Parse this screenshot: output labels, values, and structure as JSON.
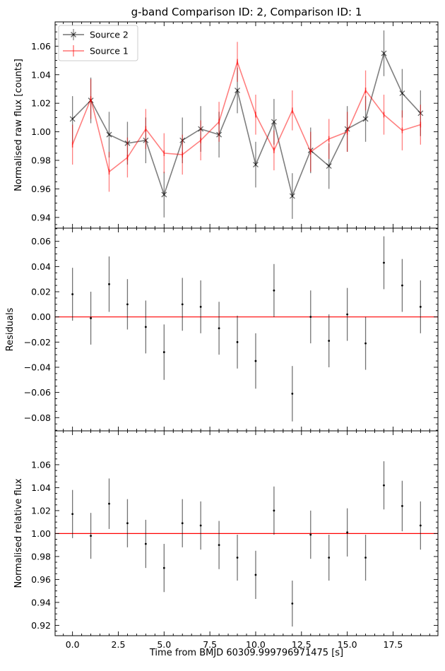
{
  "title": "g-band Comparison ID: 2, Comparison ID: 1",
  "xlabel": "Time from BMJD 60309.999796971475 [s]",
  "chart_data": [
    {
      "type": "line",
      "ylabel": "Normalised raw flux [counts]",
      "xlim": [
        -0.95,
        19.95
      ],
      "ylim": [
        0.9325,
        1.077
      ],
      "yticks": [
        "0.94",
        "0.96",
        "0.98",
        "1.00",
        "1.02",
        "1.04",
        "1.06"
      ],
      "legend": {
        "placement": "top-left",
        "entries": [
          "Source 2",
          "Source 1"
        ]
      },
      "x": [
        0,
        1,
        2,
        3,
        4,
        5,
        6,
        7,
        8,
        9,
        10,
        11,
        12,
        13,
        14,
        15,
        16,
        17,
        18,
        19
      ],
      "series": [
        {
          "name": "Source 2",
          "color": "#000000",
          "marker": "x",
          "values": [
            1.009,
            1.022,
            0.998,
            0.992,
            0.994,
            0.956,
            0.994,
            1.002,
            0.998,
            1.029,
            0.977,
            1.007,
            0.955,
            0.987,
            0.976,
            1.002,
            1.009,
            1.055,
            1.027,
            1.013
          ],
          "errors": [
            0.016,
            0.016,
            0.016,
            0.015,
            0.016,
            0.016,
            0.016,
            0.016,
            0.016,
            0.016,
            0.016,
            0.016,
            0.016,
            0.016,
            0.016,
            0.016,
            0.016,
            0.016,
            0.017,
            0.016
          ]
        },
        {
          "name": "Source 1",
          "color": "#ff0000",
          "marker": "|",
          "values": [
            0.991,
            1.023,
            0.972,
            0.982,
            1.002,
            0.985,
            0.984,
            0.994,
            1.007,
            1.049,
            1.012,
            0.987,
            1.015,
            0.986,
            0.995,
            1.0,
            1.029,
            1.012,
            1.001,
            1.005
          ],
          "errors": [
            0.014,
            0.014,
            0.014,
            0.014,
            0.014,
            0.014,
            0.014,
            0.014,
            0.014,
            0.014,
            0.014,
            0.014,
            0.014,
            0.014,
            0.014,
            0.014,
            0.014,
            0.014,
            0.014,
            0.014
          ]
        }
      ]
    },
    {
      "type": "scatter",
      "ylabel": "Residuals",
      "xlim": [
        -0.95,
        19.95
      ],
      "ylim": [
        -0.0905,
        0.0705
      ],
      "yticks": [
        "−0.08",
        "−0.06",
        "−0.04",
        "−0.02",
        "0.00",
        "0.02",
        "0.04",
        "0.06"
      ],
      "reference_line": {
        "y": 0.0,
        "color": "#ff0000"
      },
      "x": [
        0,
        1,
        2,
        3,
        4,
        5,
        6,
        7,
        8,
        9,
        10,
        11,
        12,
        13,
        14,
        15,
        16,
        17,
        18,
        19
      ],
      "series": [
        {
          "color": "#000000",
          "values": [
            0.018,
            -0.001,
            0.026,
            0.01,
            -0.008,
            -0.028,
            0.01,
            0.008,
            -0.009,
            -0.02,
            -0.035,
            0.021,
            -0.061,
            0.0,
            -0.019,
            0.002,
            -0.021,
            0.043,
            0.025,
            0.008
          ],
          "errors": [
            0.021,
            0.021,
            0.022,
            0.02,
            0.021,
            0.022,
            0.021,
            0.021,
            0.021,
            0.021,
            0.022,
            0.021,
            0.022,
            0.021,
            0.021,
            0.021,
            0.021,
            0.021,
            0.021,
            0.021
          ]
        }
      ]
    },
    {
      "type": "scatter",
      "ylabel": "Normalised relative flux",
      "xlim": [
        -0.95,
        19.95
      ],
      "ylim": [
        0.911,
        1.0895
      ],
      "yticks": [
        "0.92",
        "0.94",
        "0.96",
        "0.98",
        "1.00",
        "1.02",
        "1.04",
        "1.06"
      ],
      "xticks": [
        "0.0",
        "2.5",
        "5.0",
        "7.5",
        "10.0",
        "12.5",
        "15.0",
        "17.5"
      ],
      "reference_line": {
        "y": 1.0,
        "color": "#ff0000"
      },
      "x": [
        0,
        1,
        2,
        3,
        4,
        5,
        6,
        7,
        8,
        9,
        10,
        11,
        12,
        13,
        14,
        15,
        16,
        17,
        18,
        19
      ],
      "series": [
        {
          "color": "#000000",
          "values": [
            1.017,
            0.998,
            1.026,
            1.009,
            0.991,
            0.97,
            1.009,
            1.007,
            0.99,
            0.979,
            0.964,
            1.02,
            0.939,
            0.999,
            0.979,
            1.001,
            0.979,
            1.042,
            1.024,
            1.007
          ],
          "errors": [
            0.021,
            0.02,
            0.022,
            0.021,
            0.021,
            0.021,
            0.021,
            0.021,
            0.021,
            0.02,
            0.021,
            0.021,
            0.02,
            0.021,
            0.02,
            0.021,
            0.02,
            0.021,
            0.022,
            0.021
          ]
        }
      ]
    }
  ]
}
